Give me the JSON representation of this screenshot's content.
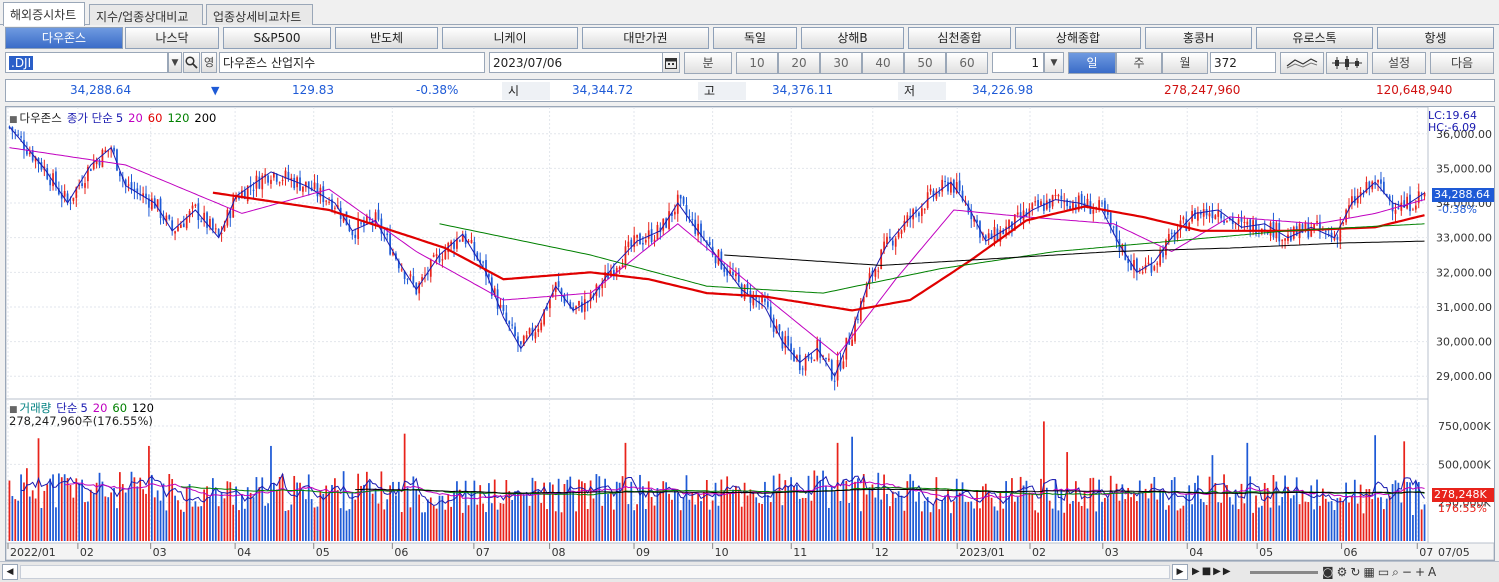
{
  "tabs": [
    {
      "label": "해외증시차트",
      "active": true
    },
    {
      "label": "지수/업종상대비교",
      "active": false
    },
    {
      "label": "업종상세비교차트",
      "active": false
    }
  ],
  "markets": [
    "다우존스",
    "나스닥",
    "S&P500",
    "반도체",
    "니케이",
    "대만가권",
    "독일",
    "상해B",
    "심천종합",
    "상해종합",
    "홍콩H",
    "유로스톡",
    "항셍"
  ],
  "symbol": {
    "code": ".DJI",
    "name": "다우존스 산업지수",
    "date": "2023/07/06",
    "period_label": "분",
    "minute_options": [
      "10",
      "20",
      "30",
      "40",
      "50",
      "60"
    ],
    "unit": "1",
    "day_label": "일",
    "week_label": "주",
    "month_label": "월",
    "count": "372",
    "settings_label": "설정",
    "next_label": "다음"
  },
  "quote": {
    "price": "34,288.64",
    "direction": "▼",
    "change": "129.83",
    "change_pct": "-0.38%",
    "open_label": "시",
    "open": "34,344.72",
    "high_label": "고",
    "high": "34,376.11",
    "low_label": "저",
    "low": "34,226.98",
    "volume": "278,247,960",
    "amount": "120,648,940"
  },
  "price_legend": {
    "name": "다우존스",
    "ma_label": "종가 단순",
    "periods": [
      "5",
      "20",
      "60",
      "120",
      "200"
    ],
    "period_colors": [
      "#1a1ab0",
      "#c000c0",
      "#e00000",
      "#008000",
      "#000000"
    ]
  },
  "price_side": {
    "lc": "LC:19.64",
    "hc": "HC:-6.09",
    "last": "34,288.64",
    "last_pct": "-0.38%"
  },
  "volume_legend": {
    "name": "거래량",
    "ma_label": "단순",
    "periods": [
      "5",
      "20",
      "60",
      "120"
    ],
    "info": "278,247,960주(176.55%)"
  },
  "volume_side": {
    "last": "278,248K",
    "last_pct": "176.55%"
  },
  "colors": {
    "up": "#e8231b",
    "down": "#1e5ad6",
    "ma5": "#1a1ab0",
    "ma20": "#c000c0",
    "ma60": "#e00000",
    "ma120": "#008000",
    "ma200": "#000000"
  },
  "chart_data": {
    "type": "candlestick",
    "y_ticks": [
      "36,000.00",
      "35,000.00",
      "34,000.00",
      "33,000.00",
      "32,000.00",
      "31,000.00",
      "30,000.00",
      "29,000.00"
    ],
    "ylim": [
      28400,
      36600
    ],
    "x_ticks": [
      "2022/01",
      "02",
      "03",
      "04",
      "05",
      "06",
      "07",
      "08",
      "09",
      "10",
      "11",
      "12",
      "2023/01",
      "02",
      "03",
      "04",
      "05",
      "06",
      "07"
    ],
    "x_end_label": "07/05",
    "volume_y_ticks": [
      "750,000K",
      "500,000K",
      "250,000K"
    ],
    "volume_ylim": [
      0,
      900000
    ],
    "close_path": [
      [
        0,
        36200
      ],
      [
        12,
        35000
      ],
      [
        20,
        34000
      ],
      [
        28,
        35100
      ],
      [
        35,
        35600
      ],
      [
        40,
        34500
      ],
      [
        50,
        34000
      ],
      [
        56,
        33200
      ],
      [
        64,
        33800
      ],
      [
        72,
        33000
      ],
      [
        78,
        34200
      ],
      [
        90,
        34900
      ],
      [
        102,
        34500
      ],
      [
        112,
        34000
      ],
      [
        118,
        33200
      ],
      [
        126,
        33500
      ],
      [
        134,
        32300
      ],
      [
        140,
        31500
      ],
      [
        148,
        32500
      ],
      [
        156,
        33100
      ],
      [
        164,
        32000
      ],
      [
        170,
        30700
      ],
      [
        176,
        29800
      ],
      [
        182,
        30500
      ],
      [
        188,
        31600
      ],
      [
        194,
        30900
      ],
      [
        200,
        31200
      ],
      [
        208,
        32200
      ],
      [
        216,
        32900
      ],
      [
        224,
        33200
      ],
      [
        230,
        34000
      ],
      [
        236,
        33300
      ],
      [
        244,
        32400
      ],
      [
        252,
        31500
      ],
      [
        260,
        31000
      ],
      [
        266,
        30000
      ],
      [
        272,
        29400
      ],
      [
        278,
        29800
      ],
      [
        284,
        29000
      ],
      [
        290,
        30300
      ],
      [
        296,
        31800
      ],
      [
        302,
        32800
      ],
      [
        308,
        33400
      ],
      [
        316,
        34100
      ],
      [
        324,
        34600
      ],
      [
        330,
        33900
      ],
      [
        336,
        32900
      ],
      [
        344,
        33300
      ],
      [
        352,
        33800
      ],
      [
        360,
        34100
      ],
      [
        368,
        34000
      ],
      [
        376,
        33800
      ],
      [
        382,
        32800
      ],
      [
        388,
        32000
      ],
      [
        394,
        32300
      ],
      [
        400,
        33000
      ],
      [
        408,
        33700
      ],
      [
        416,
        33800
      ],
      [
        424,
        33300
      ],
      [
        432,
        33400
      ],
      [
        440,
        33000
      ],
      [
        448,
        33300
      ],
      [
        456,
        33000
      ],
      [
        462,
        34000
      ],
      [
        470,
        34600
      ],
      [
        476,
        34000
      ],
      [
        480,
        33900
      ],
      [
        487,
        34290
      ]
    ],
    "ma_paths": {
      "ma20": [
        [
          0,
          35600
        ],
        [
          40,
          35100
        ],
        [
          80,
          33700
        ],
        [
          110,
          34400
        ],
        [
          140,
          32600
        ],
        [
          170,
          31200
        ],
        [
          200,
          31400
        ],
        [
          230,
          33400
        ],
        [
          260,
          31300
        ],
        [
          285,
          29600
        ],
        [
          305,
          31800
        ],
        [
          325,
          33800
        ],
        [
          350,
          33600
        ],
        [
          380,
          33400
        ],
        [
          400,
          32600
        ],
        [
          420,
          33600
        ],
        [
          450,
          33400
        ],
        [
          470,
          33700
        ],
        [
          487,
          34100
        ]
      ],
      "ma60": [
        [
          70,
          34300
        ],
        [
          110,
          33800
        ],
        [
          150,
          32700
        ],
        [
          170,
          31800
        ],
        [
          200,
          32000
        ],
        [
          220,
          31800
        ],
        [
          240,
          31400
        ],
        [
          260,
          31300
        ],
        [
          290,
          30900
        ],
        [
          310,
          31200
        ],
        [
          330,
          32300
        ],
        [
          350,
          33500
        ],
        [
          370,
          33900
        ],
        [
          390,
          33600
        ],
        [
          410,
          33200
        ],
        [
          440,
          33200
        ],
        [
          470,
          33300
        ],
        [
          487,
          33650
        ]
      ],
      "ma120": [
        [
          148,
          33400
        ],
        [
          200,
          32500
        ],
        [
          240,
          31600
        ],
        [
          280,
          31400
        ],
        [
          320,
          32100
        ],
        [
          360,
          32600
        ],
        [
          400,
          32900
        ],
        [
          440,
          33200
        ],
        [
          487,
          33400
        ]
      ],
      "ma200": [
        [
          246,
          32500
        ],
        [
          300,
          32200
        ],
        [
          340,
          32400
        ],
        [
          380,
          32600
        ],
        [
          420,
          32700
        ],
        [
          460,
          32850
        ],
        [
          487,
          32900
        ]
      ]
    },
    "volume_profile": [
      [
        0,
        380000
      ],
      [
        40,
        350000
      ],
      [
        80,
        330000
      ],
      [
        120,
        360000
      ],
      [
        160,
        310000
      ],
      [
        200,
        340000
      ],
      [
        240,
        330000
      ],
      [
        280,
        360000
      ],
      [
        320,
        330000
      ],
      [
        360,
        320000
      ],
      [
        400,
        340000
      ],
      [
        440,
        330000
      ],
      [
        487,
        300000
      ]
    ],
    "volume_spikes": [
      [
        10,
        670000
      ],
      [
        48,
        620000
      ],
      [
        90,
        620000
      ],
      [
        136,
        700000
      ],
      [
        212,
        640000
      ],
      [
        285,
        640000
      ],
      [
        290,
        680000
      ],
      [
        356,
        780000
      ],
      [
        364,
        580000
      ],
      [
        414,
        560000
      ],
      [
        426,
        640000
      ],
      [
        470,
        690000
      ],
      [
        480,
        650000
      ]
    ]
  },
  "scroll": {
    "left_arrow": "◀",
    "right_arrow": "▶"
  }
}
